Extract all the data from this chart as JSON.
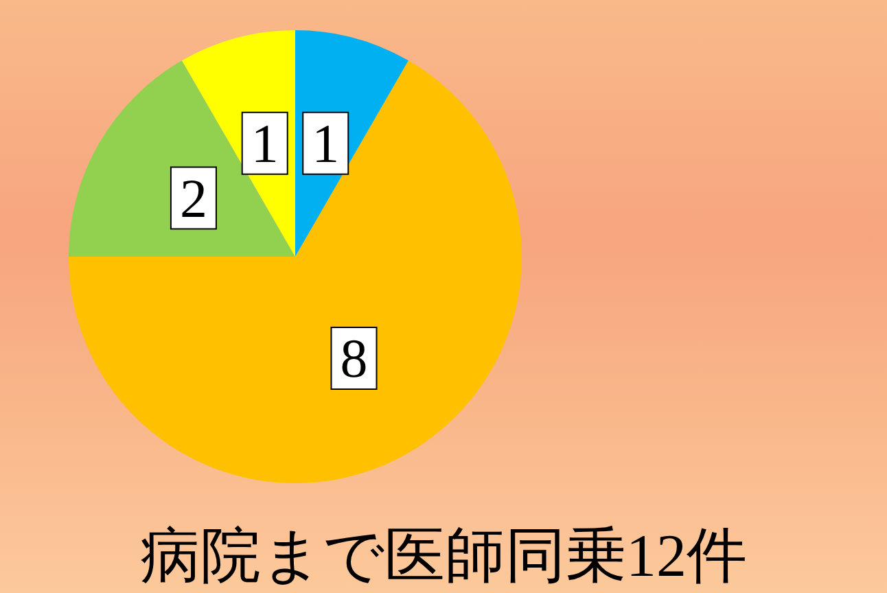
{
  "chart_data": {
    "type": "pie",
    "title": "病院まで医師同乗12件",
    "categories": [
      null,
      null,
      null,
      null
    ],
    "values": [
      1,
      8,
      2,
      1
    ],
    "colors": [
      "#00b0f0",
      "#ffc000",
      "#92d050",
      "#ffff00"
    ],
    "data_labels": true
  }
}
